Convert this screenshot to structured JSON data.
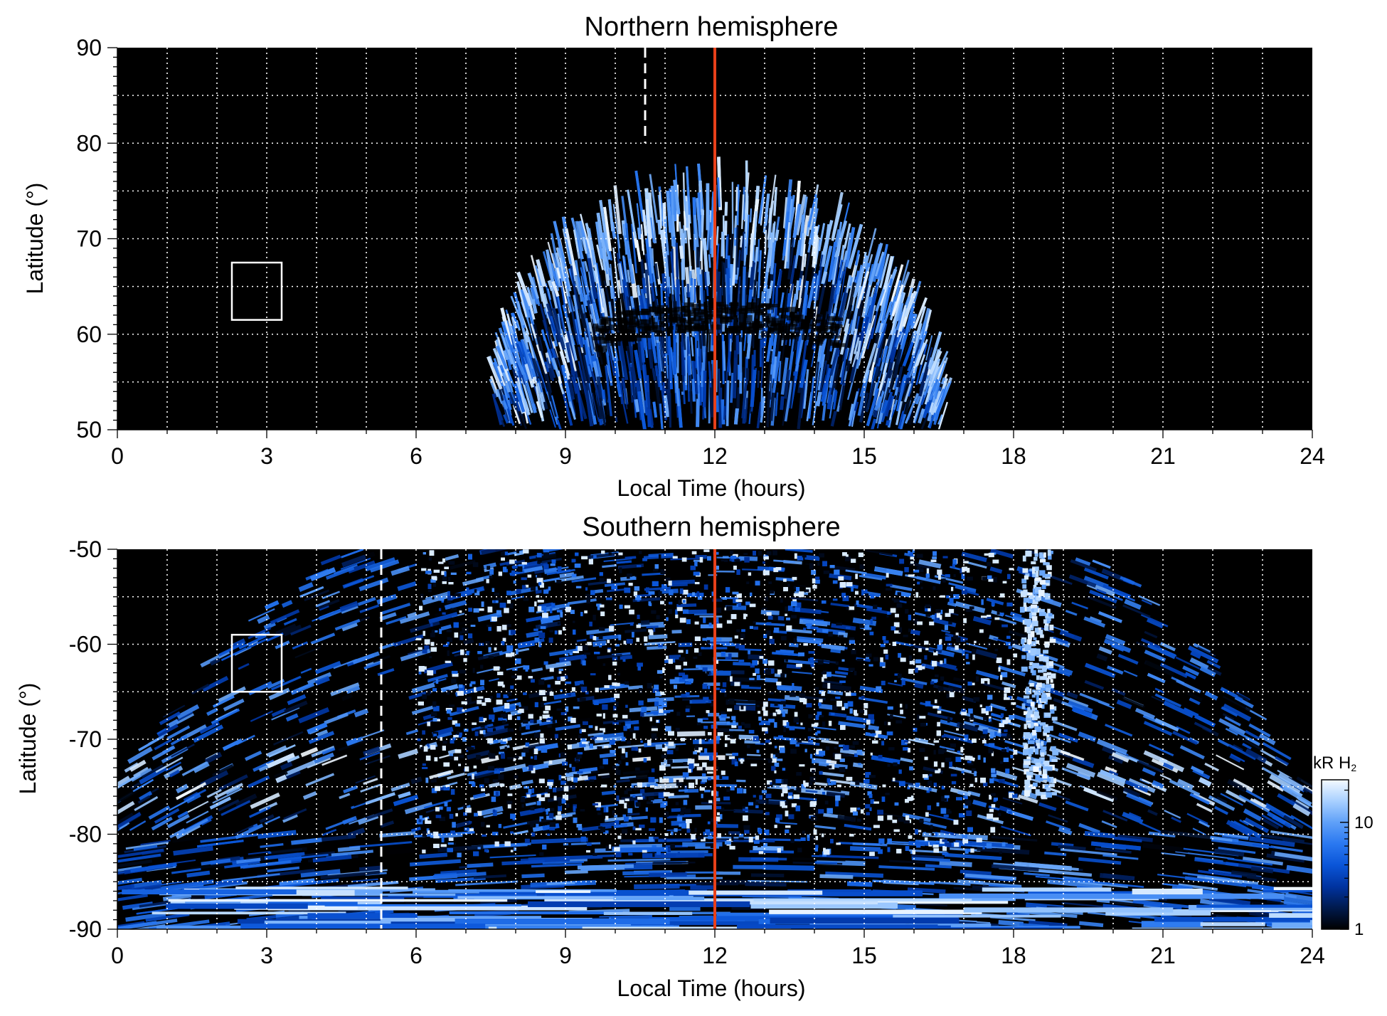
{
  "colors": {
    "background": "#000000",
    "noon_line": "#e8401a",
    "grid": "#ffffff",
    "colormap": [
      "#000000",
      "#001a4d",
      "#0033a0",
      "#0a55d8",
      "#2a78f0",
      "#5fa0f8",
      "#a8d0ff",
      "#f4faff"
    ]
  },
  "colorbar": {
    "label_prefix": "kR H",
    "label_sub": "2",
    "ticks": [
      {
        "value": 1,
        "label": "1"
      },
      {
        "value": 10,
        "label": "10"
      }
    ],
    "range": [
      1,
      25
    ],
    "scale": "log"
  },
  "chart_data": [
    {
      "type": "heatmap",
      "title": "Northern hemisphere",
      "xlabel": "Local Time (hours)",
      "ylabel": "Latitude (°)",
      "xlim": [
        0,
        24
      ],
      "ylim": [
        50,
        90
      ],
      "xticks": [
        0,
        3,
        6,
        9,
        12,
        15,
        18,
        21,
        24
      ],
      "xtick_labels": [
        "0",
        "3",
        "6",
        "9",
        "12",
        "15",
        "18",
        "21",
        "24"
      ],
      "yticks": [
        50,
        60,
        70,
        80,
        90
      ],
      "ytick_labels": [
        "50",
        "60",
        "70",
        "80",
        "90"
      ],
      "x_grid": [
        1,
        2,
        3,
        4,
        5,
        6,
        7,
        8,
        9,
        10,
        11,
        12,
        13,
        14,
        15,
        16,
        17,
        18,
        19,
        20,
        21,
        22,
        23
      ],
      "y_grid": [
        55,
        60,
        65,
        70,
        75,
        80,
        85
      ],
      "grid": true,
      "noon_line_x": 12,
      "dashed_line": {
        "x": 10.6,
        "y_from": 80,
        "y_to": 90
      },
      "box": {
        "x0": 2.3,
        "x1": 3.3,
        "y0": 61.5,
        "y1": 67.5
      },
      "emission_region": {
        "center_x": 12,
        "x_min": 7.7,
        "x_max": 16.7,
        "lat_edge": 73.5,
        "oval_lat": 65.5
      }
    },
    {
      "type": "heatmap",
      "title": "Southern hemisphere",
      "xlabel": "Local Time (hours)",
      "ylabel": "Latitude (°)",
      "xlim": [
        0,
        24
      ],
      "ylim": [
        -90,
        -50
      ],
      "xticks": [
        0,
        3,
        6,
        9,
        12,
        15,
        18,
        21,
        24
      ],
      "xtick_labels": [
        "0",
        "3",
        "6",
        "9",
        "12",
        "15",
        "18",
        "21",
        "24"
      ],
      "yticks": [
        -90,
        -80,
        -70,
        -60,
        -50
      ],
      "ytick_labels": [
        "-90",
        "-80",
        "-70",
        "-60",
        "-50"
      ],
      "x_grid": [
        1,
        2,
        3,
        4,
        5,
        6,
        7,
        8,
        9,
        10,
        11,
        12,
        13,
        14,
        15,
        16,
        17,
        18,
        19,
        20,
        21,
        22,
        23
      ],
      "y_grid": [
        -85,
        -80,
        -75,
        -70,
        -65,
        -60,
        -55
      ],
      "grid": true,
      "noon_line_x": 12,
      "dashed_line": {
        "x": 5.3,
        "y_from": -90,
        "y_to": -50
      },
      "box": {
        "x0": 2.3,
        "x1": 3.3,
        "y0": -65,
        "y1": -59
      },
      "emission_region": {
        "center_x": 12,
        "x_min": 0,
        "x_max": 24,
        "x_top_min": 5.0,
        "x_top_max": 19.0,
        "lat_floor": -75,
        "oval_lat": -72
      }
    }
  ]
}
